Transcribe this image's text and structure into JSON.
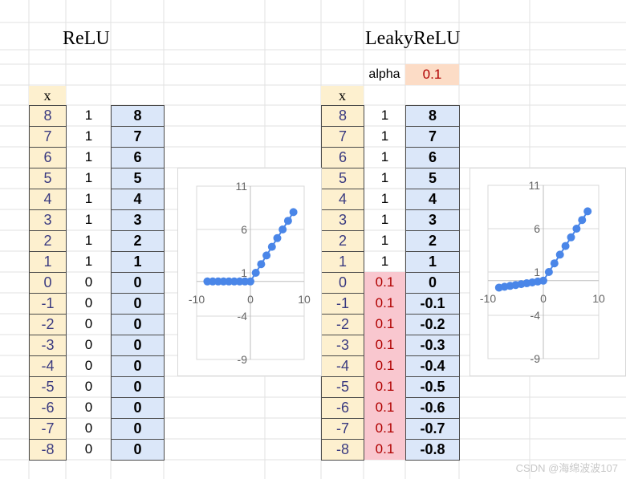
{
  "relu": {
    "title": "ReLU",
    "x_header": "x",
    "x": [
      "8",
      "7",
      "6",
      "5",
      "4",
      "3",
      "2",
      "1",
      "0",
      "-1",
      "-2",
      "-3",
      "-4",
      "-5",
      "-6",
      "-7",
      "-8"
    ],
    "d": [
      "1",
      "1",
      "1",
      "1",
      "1",
      "1",
      "1",
      "1",
      "0",
      "0",
      "0",
      "0",
      "0",
      "0",
      "0",
      "0",
      "0"
    ],
    "y": [
      "8",
      "7",
      "6",
      "5",
      "4",
      "3",
      "2",
      "1",
      "0",
      "0",
      "0",
      "0",
      "0",
      "0",
      "0",
      "0",
      "0"
    ]
  },
  "leaky": {
    "title": "LeakyReLU",
    "alpha_label": "alpha",
    "alpha_value": "0.1",
    "x_header": "x",
    "x": [
      "8",
      "7",
      "6",
      "5",
      "4",
      "3",
      "2",
      "1",
      "0",
      "-1",
      "-2",
      "-3",
      "-4",
      "-5",
      "-6",
      "-7",
      "-8"
    ],
    "d": [
      "1",
      "1",
      "1",
      "1",
      "1",
      "1",
      "1",
      "1",
      "0.1",
      "0.1",
      "0.1",
      "0.1",
      "0.1",
      "0.1",
      "0.1",
      "0.1",
      "0.1"
    ],
    "y": [
      "8",
      "7",
      "6",
      "5",
      "4",
      "3",
      "2",
      "1",
      "0",
      "-0.1",
      "-0.2",
      "-0.3",
      "-0.4",
      "-0.5",
      "-0.6",
      "-0.7",
      "-0.8"
    ]
  },
  "colors": {
    "x_fill": "#fdf0cf",
    "y_fill": "#dbe7f9",
    "alpha_fill": "#fcdcc6",
    "leak_d_fill": "#f9c7cf",
    "point": "#4a86e8"
  },
  "chart_data": [
    {
      "type": "scatter",
      "title": "",
      "xlabel": "",
      "ylabel": "",
      "xlim": [
        -10,
        10
      ],
      "ylim": [
        -9,
        11
      ],
      "x_ticks": [
        "-10",
        "0",
        "10"
      ],
      "y_ticks": [
        "11",
        "6",
        "1",
        "-4",
        "-9"
      ],
      "grid": true,
      "legend": "none",
      "x": [
        8,
        7,
        6,
        5,
        4,
        3,
        2,
        1,
        0,
        -1,
        -2,
        -3,
        -4,
        -5,
        -6,
        -7,
        -8
      ],
      "y": [
        8,
        7,
        6,
        5,
        4,
        3,
        2,
        1,
        0,
        0,
        0,
        0,
        0,
        0,
        0,
        0,
        0
      ],
      "connect": true
    },
    {
      "type": "scatter",
      "title": "",
      "xlabel": "",
      "ylabel": "",
      "xlim": [
        -10,
        10
      ],
      "ylim": [
        -9,
        11
      ],
      "x_ticks": [
        "-10",
        "0",
        "10"
      ],
      "y_ticks": [
        "11",
        "6",
        "1",
        "-4",
        "-9"
      ],
      "grid": true,
      "legend": "none",
      "x": [
        8,
        7,
        6,
        5,
        4,
        3,
        2,
        1,
        0,
        -1,
        -2,
        -3,
        -4,
        -5,
        -6,
        -7,
        -8
      ],
      "y": [
        8,
        7,
        6,
        5,
        4,
        3,
        2,
        1,
        0,
        -0.1,
        -0.2,
        -0.3,
        -0.4,
        -0.5,
        -0.6,
        -0.7,
        -0.8
      ],
      "connect": true
    }
  ],
  "watermark": "CSDN @海绵波波107"
}
